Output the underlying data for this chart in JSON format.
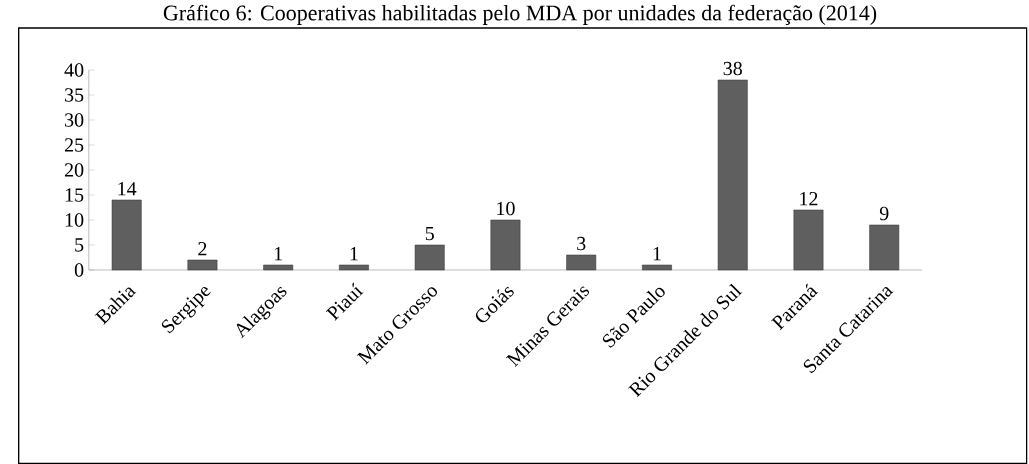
{
  "chart_data": {
    "type": "bar",
    "title": "Gráfico 6: Cooperativas habilitadas pelo MDA por unidades da federação (2014)",
    "categories": [
      "Bahia",
      "Sergipe",
      "Alagoas",
      "Piauí",
      "Mato Grosso",
      "Goiás",
      "Minas Gerais",
      "São Paulo",
      "Rio Grande do Sul",
      "Paraná",
      "Santa Catarina"
    ],
    "values": [
      14,
      2,
      1,
      1,
      5,
      10,
      3,
      1,
      38,
      12,
      9
    ],
    "color": "#5f5f5f",
    "ylim": [
      0,
      40
    ],
    "yticks": [
      0,
      5,
      10,
      15,
      20,
      25,
      30,
      35,
      40
    ],
    "data_labels": true
  }
}
